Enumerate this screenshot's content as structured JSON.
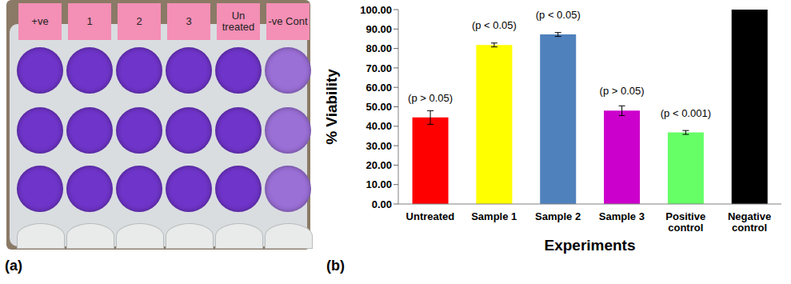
{
  "panel_labels": [
    "(a)",
    "(b)"
  ],
  "plate": {
    "labels": [
      "+ve",
      "1",
      "2",
      "3",
      "Un treated",
      "-ve Cont"
    ]
  },
  "chart_data": {
    "type": "bar",
    "categories": [
      "Untreated",
      "Sample 1",
      "Sample 2",
      "Sample 3",
      "Positive control",
      "Negative control"
    ],
    "values": [
      44.5,
      81.8,
      87.2,
      48.0,
      36.8,
      100.0
    ],
    "errors": [
      3.5,
      1.0,
      1.0,
      2.5,
      1.0,
      null
    ],
    "annotations": [
      "(p > 0.05)",
      "(p < 0.05)",
      "(p < 0.05)",
      "(p > 0.05)",
      "(p < 0.001)",
      null
    ],
    "colors": [
      "#ff0000",
      "#ffff00",
      "#4f81bd",
      "#cc00cc",
      "#66ff66",
      "#000000"
    ],
    "x_label": "Experiments",
    "y_label": "% Viability",
    "ylim": [
      0,
      100
    ],
    "yticks": [
      {
        "value": 0,
        "label": "0.00"
      },
      {
        "value": 10,
        "label": "10.00"
      },
      {
        "value": 20,
        "label": "20.00"
      },
      {
        "value": 30,
        "label": "30.00"
      },
      {
        "value": 40,
        "label": "40.00"
      },
      {
        "value": 50,
        "label": "50.00"
      },
      {
        "value": 60,
        "label": "60.00"
      },
      {
        "value": 70,
        "label": "70.00"
      },
      {
        "value": 80,
        "label": "80.00"
      },
      {
        "value": 90,
        "label": "90.00"
      },
      {
        "value": 100,
        "label": "100.00"
      }
    ],
    "grid": false
  }
}
